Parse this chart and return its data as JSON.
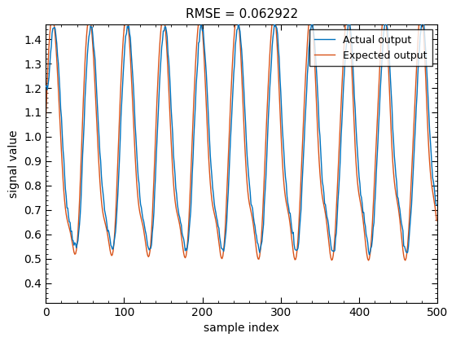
{
  "title": "RMSE = 0.062922",
  "xlabel": "sample index",
  "ylabel": "signal value",
  "xlim": [
    0,
    500
  ],
  "ylim": [
    0.32,
    1.46
  ],
  "yticks": [
    0.4,
    0.5,
    0.6,
    0.7,
    0.8,
    0.9,
    1.0,
    1.1,
    1.2,
    1.3,
    1.4
  ],
  "xticks": [
    0,
    100,
    200,
    300,
    400,
    500
  ],
  "actual_color": "#0072BD",
  "expected_color": "#D95319",
  "actual_label": "Actual output",
  "expected_label": "Expected output",
  "linewidth": 1.0,
  "title_fontsize": 11,
  "label_fontsize": 10,
  "tick_fontsize": 10,
  "legend_fontsize": 9
}
